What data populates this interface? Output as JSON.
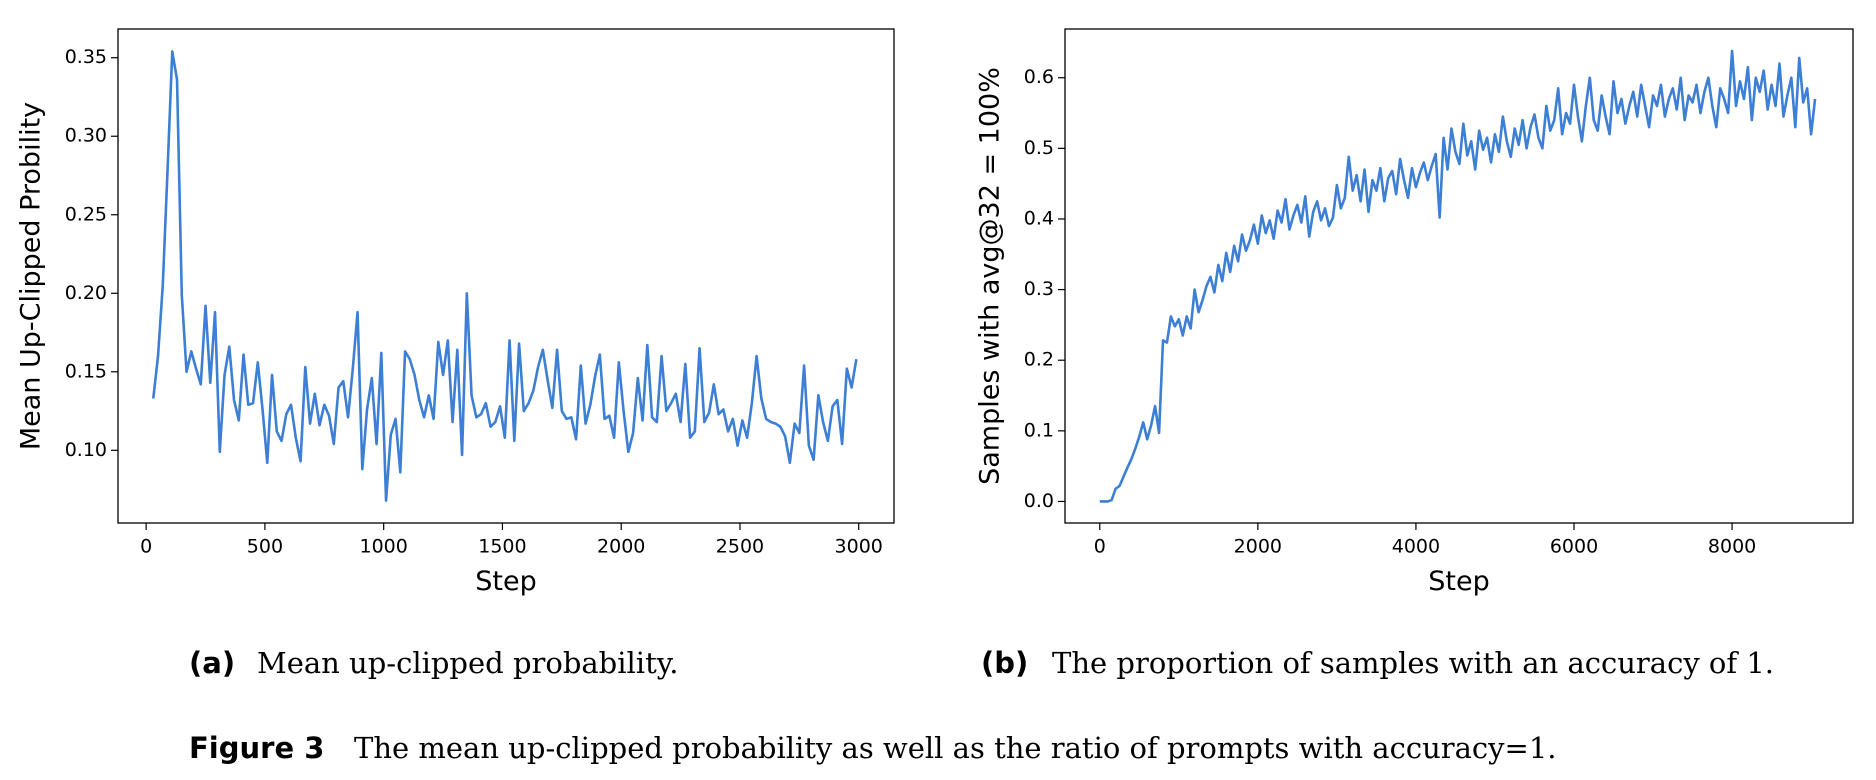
{
  "chart_data": [
    {
      "type": "line",
      "x_label": "Step",
      "y_label": "Mean Up-Clipped Probility",
      "caption_label": "(a)",
      "caption": "Mean up-clipped probability.",
      "xlim": [
        -118.5,
        3148.5
      ],
      "ylim": [
        0.0537,
        0.3683
      ],
      "xticks": [
        0,
        500,
        1000,
        1500,
        2000,
        2500,
        3000
      ],
      "yticks": [
        {
          "value": 0.1,
          "label": "0.10"
        },
        0.15,
        {
          "value": 0.2,
          "label": "0.20"
        },
        0.25,
        {
          "value": 0.3,
          "label": "0.30"
        },
        0.35
      ],
      "x": [
        30,
        50,
        70,
        90,
        110,
        130,
        150,
        170,
        190,
        210,
        230,
        250,
        270,
        290,
        310,
        330,
        350,
        370,
        390,
        410,
        430,
        450,
        470,
        490,
        510,
        530,
        550,
        570,
        590,
        610,
        630,
        650,
        670,
        690,
        710,
        730,
        750,
        770,
        790,
        810,
        830,
        850,
        870,
        890,
        910,
        930,
        950,
        970,
        990,
        1010,
        1030,
        1050,
        1070,
        1090,
        1110,
        1130,
        1150,
        1170,
        1190,
        1210,
        1230,
        1250,
        1270,
        1290,
        1310,
        1330,
        1350,
        1370,
        1390,
        1410,
        1430,
        1450,
        1470,
        1490,
        1510,
        1530,
        1550,
        1570,
        1590,
        1610,
        1630,
        1650,
        1670,
        1690,
        1710,
        1730,
        1750,
        1770,
        1790,
        1810,
        1830,
        1850,
        1870,
        1890,
        1910,
        1930,
        1950,
        1970,
        1990,
        2010,
        2030,
        2050,
        2070,
        2090,
        2110,
        2130,
        2150,
        2170,
        2190,
        2210,
        2230,
        2250,
        2270,
        2290,
        2310,
        2330,
        2350,
        2370,
        2390,
        2410,
        2430,
        2450,
        2470,
        2490,
        2510,
        2530,
        2550,
        2570,
        2590,
        2610,
        2630,
        2650,
        2670,
        2690,
        2710,
        2730,
        2750,
        2770,
        2790,
        2810,
        2830,
        2850,
        2870,
        2890,
        2910,
        2930,
        2950,
        2970,
        2990
      ],
      "series": [
        {
          "color": "#3d7fd4",
          "values": [
            0.133,
            0.16,
            0.205,
            0.278,
            0.354,
            0.336,
            0.199,
            0.15,
            0.163,
            0.152,
            0.142,
            0.192,
            0.143,
            0.188,
            0.099,
            0.148,
            0.166,
            0.132,
            0.119,
            0.161,
            0.129,
            0.13,
            0.156,
            0.126,
            0.092,
            0.148,
            0.112,
            0.106,
            0.123,
            0.129,
            0.108,
            0.093,
            0.153,
            0.117,
            0.136,
            0.116,
            0.129,
            0.122,
            0.104,
            0.14,
            0.144,
            0.121,
            0.152,
            0.188,
            0.088,
            0.126,
            0.146,
            0.104,
            0.162,
            0.068,
            0.11,
            0.12,
            0.086,
            0.163,
            0.158,
            0.148,
            0.132,
            0.121,
            0.135,
            0.12,
            0.169,
            0.148,
            0.17,
            0.118,
            0.164,
            0.097,
            0.2,
            0.135,
            0.121,
            0.123,
            0.13,
            0.115,
            0.118,
            0.128,
            0.108,
            0.17,
            0.106,
            0.168,
            0.125,
            0.13,
            0.138,
            0.153,
            0.164,
            0.145,
            0.127,
            0.164,
            0.125,
            0.12,
            0.121,
            0.107,
            0.154,
            0.117,
            0.129,
            0.147,
            0.161,
            0.12,
            0.122,
            0.108,
            0.156,
            0.125,
            0.099,
            0.111,
            0.146,
            0.119,
            0.167,
            0.121,
            0.118,
            0.16,
            0.125,
            0.13,
            0.136,
            0.118,
            0.155,
            0.108,
            0.112,
            0.165,
            0.118,
            0.124,
            0.142,
            0.123,
            0.126,
            0.112,
            0.12,
            0.103,
            0.119,
            0.108,
            0.13,
            0.16,
            0.133,
            0.12,
            0.118,
            0.117,
            0.115,
            0.109,
            0.092,
            0.117,
            0.111,
            0.154,
            0.103,
            0.094,
            0.135,
            0.118,
            0.106,
            0.128,
            0.132,
            0.104,
            0.152,
            0.14,
            0.158
          ]
        }
      ]
    },
    {
      "type": "line",
      "x_label": "Step",
      "y_label": "Samples with avg@32 = 100%",
      "caption_label": "(b)",
      "caption": "The proportion of samples with an accuracy of 1.",
      "xlim": [
        -440,
        9530
      ],
      "ylim": [
        -0.0305,
        0.669
      ],
      "xticks": [
        0,
        2000,
        4000,
        6000,
        8000
      ],
      "yticks": [
        {
          "value": 0,
          "label": "0.0"
        },
        0.1,
        0.2,
        0.3,
        0.4,
        0.5,
        0.6
      ],
      "x": [
        0,
        50,
        100,
        150,
        200,
        250,
        300,
        350,
        400,
        450,
        500,
        550,
        600,
        650,
        700,
        750,
        800,
        850,
        900,
        950,
        1000,
        1050,
        1100,
        1150,
        1200,
        1250,
        1300,
        1350,
        1400,
        1450,
        1500,
        1550,
        1600,
        1650,
        1700,
        1750,
        1800,
        1850,
        1900,
        1950,
        2000,
        2050,
        2100,
        2150,
        2200,
        2250,
        2300,
        2350,
        2400,
        2450,
        2500,
        2550,
        2600,
        2650,
        2700,
        2750,
        2800,
        2850,
        2900,
        2950,
        3000,
        3050,
        3100,
        3150,
        3200,
        3250,
        3300,
        3350,
        3400,
        3450,
        3500,
        3550,
        3600,
        3650,
        3700,
        3750,
        3800,
        3850,
        3900,
        3950,
        4000,
        4050,
        4100,
        4150,
        4200,
        4250,
        4300,
        4350,
        4400,
        4450,
        4500,
        4550,
        4600,
        4650,
        4700,
        4750,
        4800,
        4850,
        4900,
        4950,
        5000,
        5050,
        5100,
        5150,
        5200,
        5250,
        5300,
        5350,
        5400,
        5450,
        5500,
        5550,
        5600,
        5650,
        5700,
        5750,
        5800,
        5850,
        5900,
        5950,
        6000,
        6050,
        6100,
        6150,
        6200,
        6250,
        6300,
        6350,
        6400,
        6450,
        6500,
        6550,
        6600,
        6650,
        6700,
        6750,
        6800,
        6850,
        6900,
        6950,
        7000,
        7050,
        7100,
        7150,
        7200,
        7250,
        7300,
        7350,
        7400,
        7450,
        7500,
        7550,
        7600,
        7650,
        7700,
        7750,
        7800,
        7850,
        7900,
        7950,
        8000,
        8050,
        8100,
        8150,
        8200,
        8250,
        8300,
        8350,
        8400,
        8450,
        8500,
        8550,
        8600,
        8650,
        8700,
        8750,
        8800,
        8850,
        8900,
        8950,
        9000,
        9050
      ],
      "series": [
        {
          "color": "#3d7fd4",
          "values": [
            0,
            0,
            0,
            0.002,
            0.018,
            0.022,
            0.035,
            0.048,
            0.06,
            0.075,
            0.092,
            0.112,
            0.088,
            0.108,
            0.135,
            0.097,
            0.228,
            0.225,
            0.262,
            0.248,
            0.258,
            0.235,
            0.262,
            0.245,
            0.3,
            0.268,
            0.285,
            0.305,
            0.318,
            0.296,
            0.335,
            0.312,
            0.352,
            0.325,
            0.362,
            0.34,
            0.378,
            0.355,
            0.37,
            0.392,
            0.365,
            0.405,
            0.38,
            0.398,
            0.372,
            0.412,
            0.395,
            0.428,
            0.385,
            0.405,
            0.42,
            0.395,
            0.432,
            0.375,
            0.41,
            0.425,
            0.398,
            0.415,
            0.39,
            0.402,
            0.448,
            0.415,
            0.43,
            0.488,
            0.44,
            0.462,
            0.425,
            0.47,
            0.41,
            0.455,
            0.44,
            0.472,
            0.425,
            0.458,
            0.468,
            0.435,
            0.485,
            0.455,
            0.43,
            0.472,
            0.445,
            0.465,
            0.48,
            0.455,
            0.475,
            0.492,
            0.402,
            0.515,
            0.47,
            0.528,
            0.495,
            0.478,
            0.535,
            0.49,
            0.51,
            0.47,
            0.525,
            0.498,
            0.515,
            0.48,
            0.52,
            0.495,
            0.545,
            0.51,
            0.488,
            0.528,
            0.505,
            0.54,
            0.5,
            0.53,
            0.548,
            0.515,
            0.5,
            0.56,
            0.525,
            0.54,
            0.585,
            0.52,
            0.55,
            0.535,
            0.59,
            0.545,
            0.51,
            0.56,
            0.6,
            0.54,
            0.525,
            0.575,
            0.545,
            0.52,
            0.595,
            0.55,
            0.57,
            0.535,
            0.56,
            0.58,
            0.545,
            0.59,
            0.56,
            0.53,
            0.575,
            0.56,
            0.59,
            0.545,
            0.57,
            0.585,
            0.555,
            0.6,
            0.54,
            0.575,
            0.565,
            0.59,
            0.55,
            0.58,
            0.6,
            0.56,
            0.53,
            0.585,
            0.57,
            0.55,
            0.638,
            0.56,
            0.595,
            0.57,
            0.615,
            0.54,
            0.6,
            0.58,
            0.61,
            0.555,
            0.59,
            0.56,
            0.62,
            0.545,
            0.575,
            0.6,
            0.53,
            0.628,
            0.565,
            0.585,
            0.52,
            0.57
          ]
        }
      ]
    }
  ],
  "figure_caption": {
    "label": "Figure 3",
    "text": "The mean up-clipped probability as well as the ratio of prompts with accuracy=1."
  }
}
